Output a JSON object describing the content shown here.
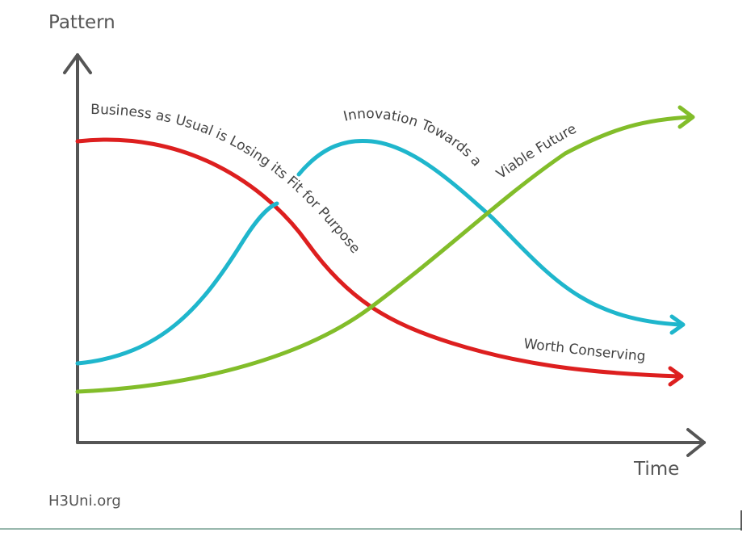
{
  "axes": {
    "y_label": "Pattern",
    "x_label": "Time"
  },
  "curves": {
    "first": {
      "label": "Business as Usual is Losing its Fit for Purpose",
      "color": "#dd1f1f"
    },
    "second": {
      "label": "Innovation Towards a Viable Future",
      "color": "#1fb6cc"
    },
    "third": {
      "label": "Worth Conserving",
      "color": "#82bd2a"
    }
  },
  "footer": {
    "site": "H3Uni.org",
    "rule_color": "#2f6f5a"
  }
}
